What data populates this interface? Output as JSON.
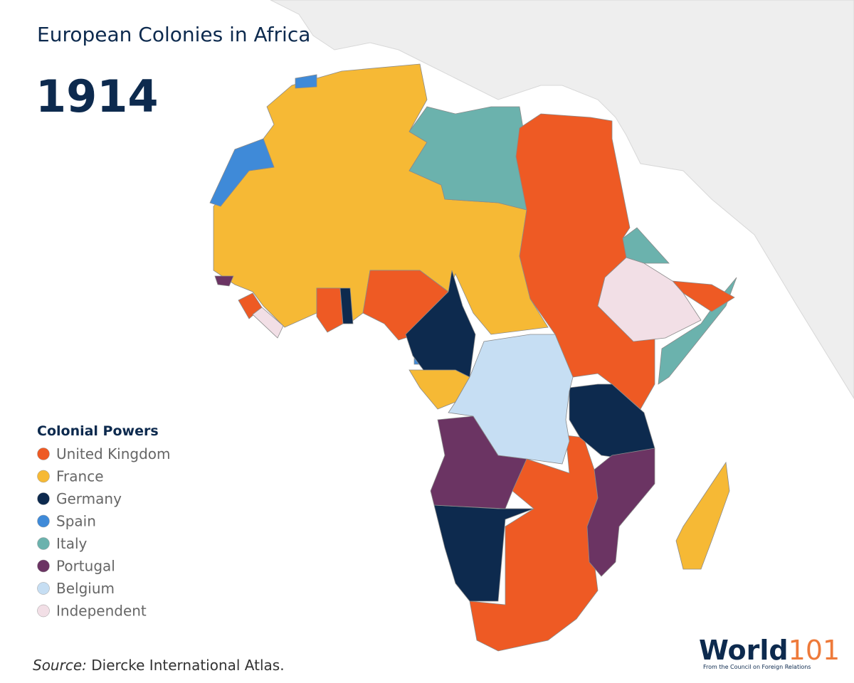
{
  "header": {
    "title": "European Colonies in Africa",
    "year": "1914"
  },
  "legend": {
    "title": "Colonial Powers",
    "items": [
      {
        "label": "United Kingdom",
        "color": "#ee5a24"
      },
      {
        "label": "France",
        "color": "#f6b935"
      },
      {
        "label": "Germany",
        "color": "#0d2a4e"
      },
      {
        "label": "Spain",
        "color": "#3f8ad8"
      },
      {
        "label": "Italy",
        "color": "#6bb2ad"
      },
      {
        "label": "Portugal",
        "color": "#6b3463"
      },
      {
        "label": "Belgium",
        "color": "#c6def3"
      },
      {
        "label": "Independent",
        "color": "#f2dfe6"
      }
    ]
  },
  "source": {
    "prefix": "Source:",
    "text": "Diercke International Atlas."
  },
  "logo": {
    "word": "World",
    "number": "101",
    "tagline": "From the Council on Foreign Relations"
  }
}
